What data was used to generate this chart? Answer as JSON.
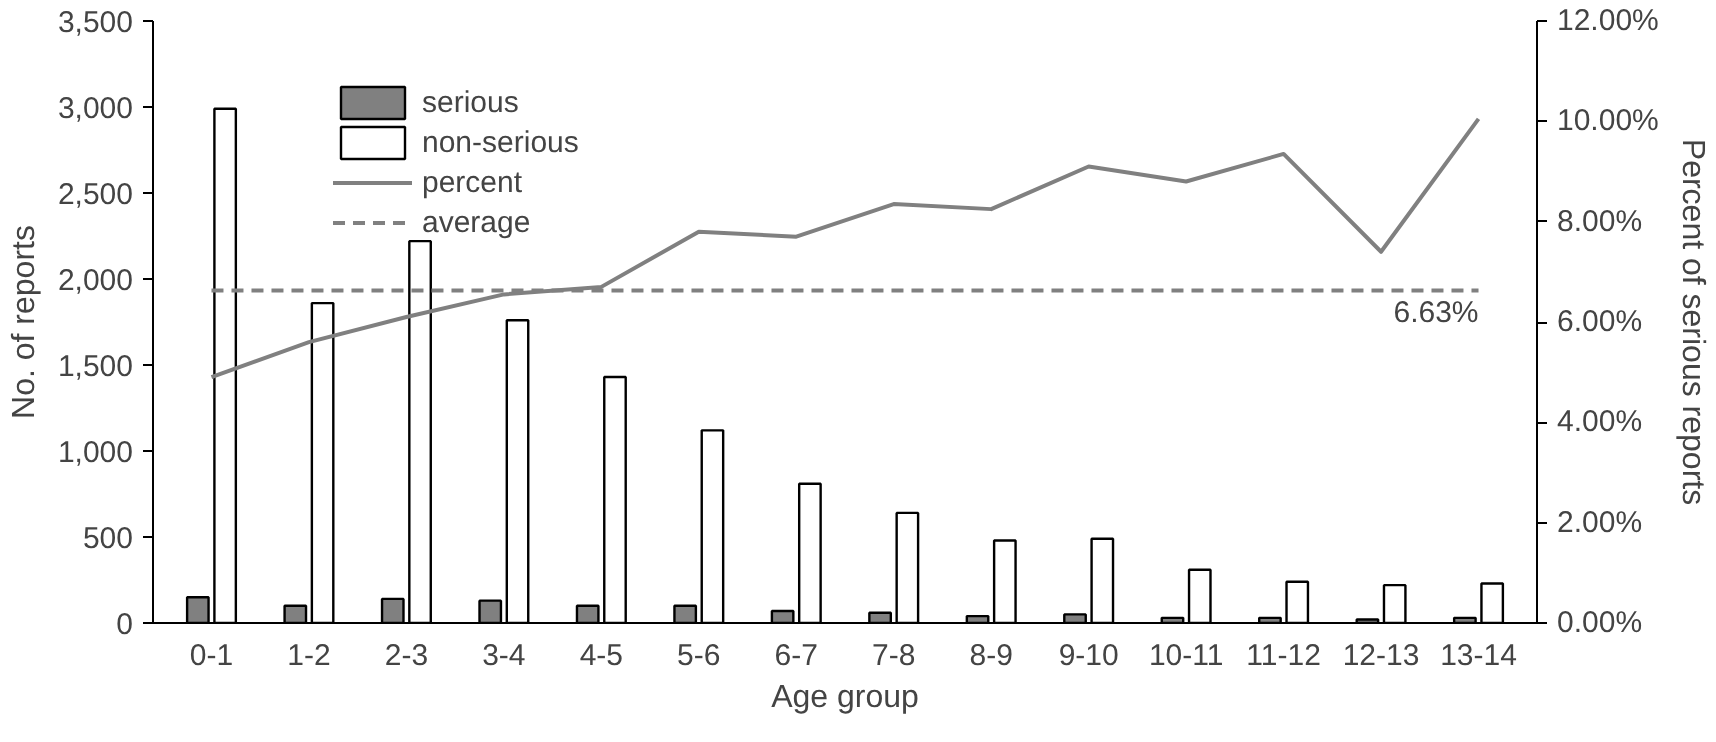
{
  "chart_data": {
    "type": "bar",
    "xlabel": "Age group",
    "ylabel": "No. of reports",
    "y2label": "Percent of serious reports",
    "categories": [
      "0-1",
      "1-2",
      "2-3",
      "3-4",
      "4-5",
      "5-6",
      "6-7",
      "7-8",
      "8-9",
      "9-10",
      "10-11",
      "11-12",
      "12-13",
      "13-14"
    ],
    "series": [
      {
        "name": "serious",
        "color": "#808080",
        "values": [
          150,
          100,
          140,
          130,
          100,
          100,
          70,
          60,
          40,
          50,
          30,
          30,
          20,
          30
        ]
      },
      {
        "name": "non-serious",
        "color": "#ffffff",
        "values": [
          2990,
          1860,
          2220,
          1760,
          1430,
          1120,
          810,
          640,
          480,
          490,
          310,
          240,
          220,
          230
        ]
      },
      {
        "name": "percent",
        "type": "line",
        "axis": "y2",
        "color": "#808080",
        "line_style": "solid",
        "values": [
          4.9,
          5.6,
          6.1,
          6.55,
          6.7,
          7.8,
          7.7,
          8.35,
          8.25,
          9.1,
          8.8,
          9.35,
          7.4,
          10.05
        ]
      },
      {
        "name": "average",
        "type": "line",
        "axis": "y2",
        "color": "#808080",
        "line_style": "dashed",
        "values": [
          6.63,
          6.63,
          6.63,
          6.63,
          6.63,
          6.63,
          6.63,
          6.63,
          6.63,
          6.63,
          6.63,
          6.63,
          6.63,
          6.63
        ]
      }
    ],
    "annotations": [
      "6.63%"
    ],
    "ylim": [
      0,
      3500
    ],
    "yticks": [
      0,
      {
        "value": 500,
        "label": "500"
      },
      {
        "value": 1000,
        "label": "1,000"
      },
      {
        "value": 1500,
        "label": "1,500"
      },
      {
        "value": 2000,
        "label": "2,000"
      },
      {
        "value": 2500,
        "label": "2,500"
      },
      {
        "value": 3000,
        "label": "3,000"
      },
      {
        "value": 3500,
        "label": "3,500"
      }
    ],
    "y2lim": [
      0,
      12
    ],
    "y2ticks": [
      {
        "value": 0,
        "label": "0.00%"
      },
      {
        "value": 2,
        "label": "2.00%"
      },
      {
        "value": 4,
        "label": "4.00%"
      },
      {
        "value": 6,
        "label": "6.00%"
      },
      {
        "value": 8,
        "label": "8.00%"
      },
      {
        "value": 10,
        "label": "10.00%"
      },
      {
        "value": 12,
        "label": "12.00%"
      }
    ],
    "grid": false,
    "legend": "top left"
  }
}
